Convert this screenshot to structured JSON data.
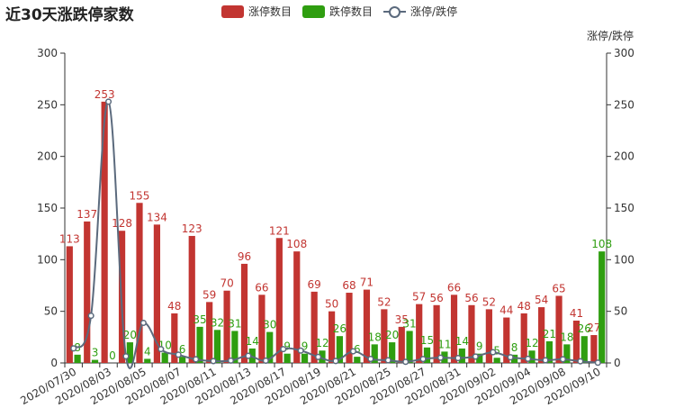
{
  "title": "近30天涨跌停家数",
  "legend": {
    "up": "涨停数目",
    "down": "跌停数目",
    "ratio": "涨停/跌停"
  },
  "right_axis_name": "涨停/跌停",
  "colors": {
    "up": "#c23531",
    "down": "#2f9e10",
    "ratio": "#5b6a7d"
  },
  "chart_data": {
    "type": "bar",
    "categories": [
      "2020/07/30",
      "2020/07/31",
      "2020/08/03",
      "2020/08/04",
      "2020/08/05",
      "2020/08/06",
      "2020/08/07",
      "2020/08/10",
      "2020/08/11",
      "2020/08/12",
      "2020/08/13",
      "2020/08/14",
      "2020/08/17",
      "2020/08/18",
      "2020/08/19",
      "2020/08/20",
      "2020/08/21",
      "2020/08/24",
      "2020/08/25",
      "2020/08/26",
      "2020/08/27",
      "2020/08/28",
      "2020/08/31",
      "2020/09/01",
      "2020/09/02",
      "2020/09/03",
      "2020/09/04",
      "2020/09/07",
      "2020/09/08",
      "2020/09/09",
      "2020/09/10"
    ],
    "xtick_labels": [
      "2020/07/30",
      "2020/08/03",
      "2020/08/05",
      "2020/08/07",
      "2020/08/11",
      "2020/08/13",
      "2020/08/17",
      "2020/08/19",
      "2020/08/21",
      "2020/08/25",
      "2020/08/27",
      "2020/08/31",
      "2020/09/02",
      "2020/09/04",
      "2020/09/08",
      "2020/09/10"
    ],
    "series": [
      {
        "name": "涨停数目",
        "type": "bar",
        "values": [
          113,
          137,
          253,
          128,
          155,
          134,
          48,
          123,
          59,
          70,
          96,
          66,
          121,
          108,
          69,
          50,
          68,
          71,
          52,
          35,
          57,
          56,
          66,
          56,
          52,
          44,
          48,
          54,
          65,
          41,
          27
        ]
      },
      {
        "name": "跌停数目",
        "type": "bar",
        "values": [
          8,
          3,
          0,
          20,
          4,
          10,
          6,
          35,
          32,
          31,
          14,
          30,
          9,
          9,
          12,
          26,
          6,
          18,
          20,
          31,
          15,
          11,
          14,
          9,
          5,
          8,
          12,
          21,
          18,
          26,
          108
        ]
      },
      {
        "name": "涨停/跌停",
        "type": "line",
        "axis": "right",
        "values": [
          14.1,
          45.7,
          253,
          6.4,
          38.8,
          13.4,
          8,
          3.5,
          1.8,
          2.3,
          6.9,
          2.2,
          13.4,
          12,
          5.8,
          1.9,
          11.3,
          3.9,
          2.6,
          1.1,
          3.8,
          5.1,
          4.7,
          6.2,
          10.4,
          5.5,
          4,
          2.6,
          3.6,
          1.6,
          0.25
        ]
      }
    ],
    "ylim": [
      0,
      300
    ],
    "ylim_right": [
      0,
      300
    ],
    "yticks": [
      0,
      50,
      100,
      150,
      200,
      250,
      300
    ],
    "grid": false,
    "legend_position": "top"
  }
}
